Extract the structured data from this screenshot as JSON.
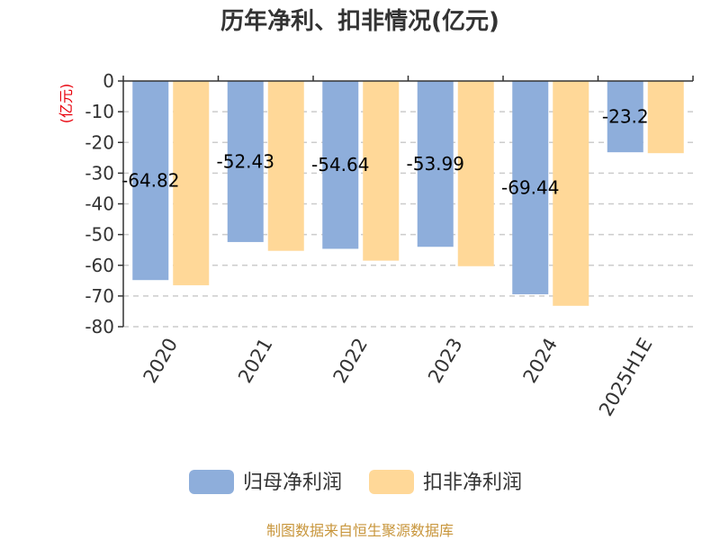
{
  "chart_data": {
    "type": "bar",
    "title": "历年净利、扣非情况(亿元)",
    "ylabel": "(亿元)",
    "categories": [
      "2020",
      "2021",
      "2022",
      "2023",
      "2024",
      "2025H1E"
    ],
    "series": [
      {
        "name": "归母净利润",
        "values": [
          -64.82,
          -52.43,
          -54.64,
          -53.99,
          -69.44,
          -23.2
        ],
        "labels": [
          "-64.82",
          "-52.43",
          "-54.64",
          "-53.99",
          "-69.44",
          "-23.2"
        ]
      },
      {
        "name": "扣非净利润",
        "values": [
          -66.5,
          -55.3,
          -58.5,
          -60.3,
          -73.2,
          -23.5
        ]
      }
    ],
    "ylim": [
      -80,
      0
    ],
    "yticks": [
      0,
      -10,
      -20,
      -30,
      -40,
      -50,
      -60,
      -70,
      -80
    ],
    "grid": true,
    "legend_position": "bottom"
  },
  "colors": {
    "series_1": "#8eaedb",
    "series_2": "#ffd898",
    "grid": "#cccccc",
    "unit_label": "#e8000b",
    "source": "#c8963c"
  },
  "source_text": "制图数据来自恒生聚源数据库"
}
